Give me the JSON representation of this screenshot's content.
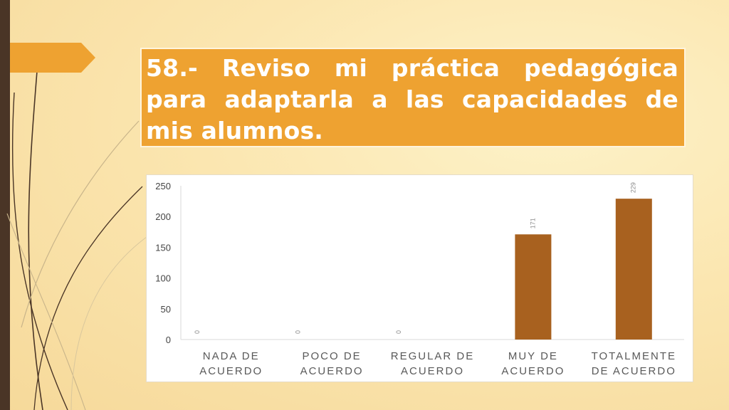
{
  "slide": {
    "title": "58.- Reviso mi práctica pedagógica para adaptarla a las capacidades de mis alumnos."
  },
  "colors": {
    "accent": "#eea231",
    "bar": "#a8611f",
    "sidebar": "#4a3526"
  },
  "chart_data": {
    "type": "bar",
    "categories": [
      [
        "NADA DE",
        "ACUERDO"
      ],
      [
        "POCO DE",
        "ACUERDO"
      ],
      [
        "REGULAR DE",
        "ACUERDO"
      ],
      [
        "MUY DE",
        "ACUERDO"
      ],
      [
        "TOTALMENTE",
        "DE ACUERDO"
      ]
    ],
    "values": [
      0,
      0,
      0,
      171,
      229
    ],
    "data_labels": [
      "0",
      "0",
      "0",
      "171",
      "229"
    ],
    "ylim": [
      0,
      250
    ],
    "yticks": [
      0,
      50,
      100,
      150,
      200,
      250
    ],
    "grid": false,
    "legend": "none"
  }
}
